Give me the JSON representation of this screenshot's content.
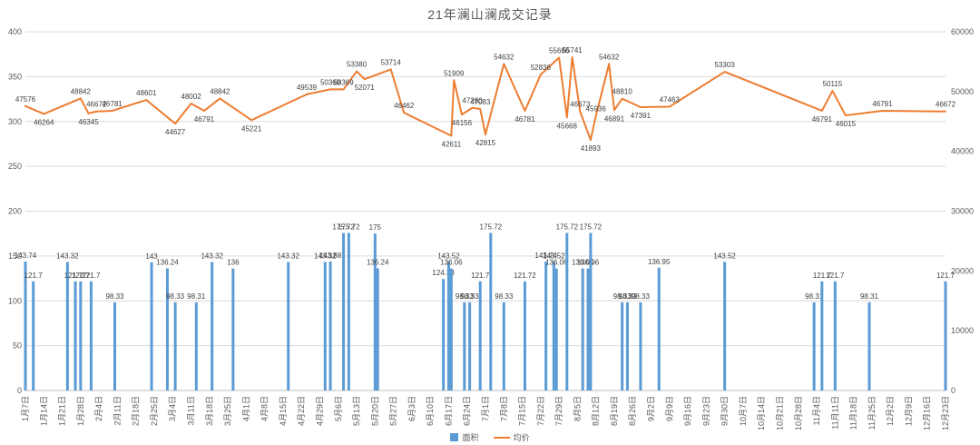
{
  "title": "21年澜山澜成交记录",
  "legend": {
    "area_label": "面积",
    "price_label": "均价"
  },
  "colors": {
    "bar": "#5B9BD5",
    "line": "#ED7D31",
    "grid": "#D9D9D9",
    "axis": "#BFBFBF",
    "label": "#404040",
    "tick": "#595959",
    "title": "#595959"
  },
  "chart_data": {
    "type": "bar",
    "subtype": "combo bar+line",
    "title": "21年澜山澜成交记录",
    "legend_position": "bottom",
    "grid": true,
    "series": [
      {
        "name": "面积",
        "type": "bar",
        "axis": "left"
      },
      {
        "name": "均价",
        "type": "line",
        "axis": "right"
      }
    ],
    "left_axis": {
      "min": 0,
      "max": 400,
      "step": 50,
      "ticks": [
        0,
        50,
        100,
        150,
        200,
        250,
        300,
        350,
        400
      ]
    },
    "right_axis": {
      "min": 0,
      "max": 60000,
      "step": 10000,
      "ticks": [
        0,
        10000,
        20000,
        30000,
        40000,
        50000,
        60000
      ]
    },
    "x_ticks": [
      "1月7日",
      "1月14日",
      "1月21日",
      "1月28日",
      "2月4日",
      "2月11日",
      "2月18日",
      "2月25日",
      "3月4日",
      "3月11日",
      "3月18日",
      "3月25日",
      "4月1日",
      "4月8日",
      "4月15日",
      "4月22日",
      "4月29日",
      "5月6日",
      "5月13日",
      "5月20日",
      "5月27日",
      "6月3日",
      "6月10日",
      "6月17日",
      "6月24日",
      "7月1日",
      "7月8日",
      "7月15日",
      "7月22日",
      "7月29日",
      "8月5日",
      "8月12日",
      "8月19日",
      "8月26日",
      "9月2日",
      "9月9日",
      "9月16日",
      "9月23日",
      "9月30日",
      "10月7日",
      "10月14日",
      "10月21日",
      "10月28日",
      "11月4日",
      "11月11日",
      "11月18日",
      "11月25日",
      "12月2日",
      "12月9日",
      "12月16日",
      "12月23日"
    ],
    "points": [
      {
        "date": "1月7日",
        "area": 143.74,
        "price": 47576
      },
      {
        "date": "1月10日",
        "area": 121.7,
        "price": null
      },
      {
        "date": "1月14日",
        "area": null,
        "price": 46264
      },
      {
        "date": "1月23日",
        "area": 143.32,
        "price": null
      },
      {
        "date": "1月26日",
        "area": 121.77,
        "price": null
      },
      {
        "date": "1月28日",
        "area": 121.7,
        "price": 48842
      },
      {
        "date": "1月31日",
        "area": null,
        "price": 46345
      },
      {
        "date": "2月1日",
        "area": 121.7,
        "price": null
      },
      {
        "date": "2月3日",
        "area": null,
        "price": 46672
      },
      {
        "date": "2月9日",
        "area": null,
        "price": 46781
      },
      {
        "date": "2月10日",
        "area": 98.33,
        "price": null
      },
      {
        "date": "2月22日",
        "area": null,
        "price": 48601
      },
      {
        "date": "2月24日",
        "area": 143,
        "price": null
      },
      {
        "date": "3月2日",
        "area": 136.24,
        "price": null
      },
      {
        "date": "3月5日",
        "area": 98.33,
        "price": 44627
      },
      {
        "date": "3月11日",
        "area": null,
        "price": 48002
      },
      {
        "date": "3月13日",
        "area": 98.31,
        "price": null
      },
      {
        "date": "3月16日",
        "area": null,
        "price": 46791
      },
      {
        "date": "3月19日",
        "area": 143.32,
        "price": null
      },
      {
        "date": "3月22日",
        "area": null,
        "price": 48842
      },
      {
        "date": "3月27日",
        "area": 136,
        "price": null
      },
      {
        "date": "4月3日",
        "area": null,
        "price": 45221
      },
      {
        "date": "4月17日",
        "area": 143.32,
        "price": null
      },
      {
        "date": "4月24日",
        "area": null,
        "price": 49539
      },
      {
        "date": "5月1日",
        "area": 143.32,
        "price": null
      },
      {
        "date": "5月3日",
        "area": 143.88,
        "price": 50369
      },
      {
        "date": "5月8日",
        "area": 175.72,
        "price": 50369
      },
      {
        "date": "5月10日",
        "area": 175.72,
        "price": null
      },
      {
        "date": "5月13日",
        "area": null,
        "price": 53380
      },
      {
        "date": "5月16日",
        "area": null,
        "price": 52071
      },
      {
        "date": "5月20日",
        "area": 175,
        "price": null
      },
      {
        "date": "5月21日",
        "area": 136.24,
        "price": null
      },
      {
        "date": "5月26日",
        "area": null,
        "price": 53714
      },
      {
        "date": "5月31日",
        "area": null,
        "price": 46462
      },
      {
        "date": "6月15日",
        "area": 124.38,
        "price": null
      },
      {
        "date": "6月17日",
        "area": 143.52,
        "price": null
      },
      {
        "date": "6月18日",
        "area": 136.06,
        "price": 42611
      },
      {
        "date": "6月19日",
        "area": null,
        "price": 51909
      },
      {
        "date": "6月22日",
        "area": null,
        "price": 46156
      },
      {
        "date": "6月23日",
        "area": 98.33,
        "price": null
      },
      {
        "date": "6月25日",
        "area": 98.33,
        "price": null
      },
      {
        "date": "6月26日",
        "area": null,
        "price": 47280
      },
      {
        "date": "6月29日",
        "area": 121.7,
        "price": 47083
      },
      {
        "date": "7月1日",
        "area": null,
        "price": 42815
      },
      {
        "date": "7月3日",
        "area": 175.72,
        "price": null
      },
      {
        "date": "7月8日",
        "area": 98.33,
        "price": 54632
      },
      {
        "date": "7月16日",
        "area": 121.72,
        "price": 46781
      },
      {
        "date": "7月22日",
        "area": null,
        "price": 52836
      },
      {
        "date": "7月24日",
        "area": 143.74,
        "price": null
      },
      {
        "date": "7月27日",
        "area": 143.52,
        "price": null
      },
      {
        "date": "7月28日",
        "area": 136.06,
        "price": null
      },
      {
        "date": "7月29日",
        "area": null,
        "price": 55666
      },
      {
        "date": "8月1日",
        "area": 175.72,
        "price": 45668
      },
      {
        "date": "8月3日",
        "area": null,
        "price": 55741
      },
      {
        "date": "8月6日",
        "area": null,
        "price": 46673
      },
      {
        "date": "8月7日",
        "area": 136.06,
        "price": null
      },
      {
        "date": "8月9日",
        "area": 136.06,
        "price": null
      },
      {
        "date": "8月10日",
        "area": 175.72,
        "price": 41893
      },
      {
        "date": "8月12日",
        "area": null,
        "price": 45936
      },
      {
        "date": "8月17日",
        "area": null,
        "price": 54632
      },
      {
        "date": "8月19日",
        "area": null,
        "price": 46891
      },
      {
        "date": "8月22日",
        "area": 98.33,
        "price": 48810
      },
      {
        "date": "8月24日",
        "area": 98.33,
        "price": null
      },
      {
        "date": "8月29日",
        "area": 98.33,
        "price": 47391
      },
      {
        "date": "9月5日",
        "area": 136.95,
        "price": null
      },
      {
        "date": "9月9日",
        "area": null,
        "price": 47463
      },
      {
        "date": "9月30日",
        "area": 143.52,
        "price": 53303
      },
      {
        "date": "11月3日",
        "area": 98.31,
        "price": null
      },
      {
        "date": "11月6日",
        "area": 121.7,
        "price": 46791
      },
      {
        "date": "11月10日",
        "area": null,
        "price": 50115
      },
      {
        "date": "11月11日",
        "area": 121.7,
        "price": null
      },
      {
        "date": "11月15日",
        "area": null,
        "price": 46015
      },
      {
        "date": "11月24日",
        "area": 98.31,
        "price": null
      },
      {
        "date": "11月29日",
        "area": null,
        "price": 46791
      },
      {
        "date": "12月23日",
        "area": 121.7,
        "price": 46672
      }
    ]
  }
}
